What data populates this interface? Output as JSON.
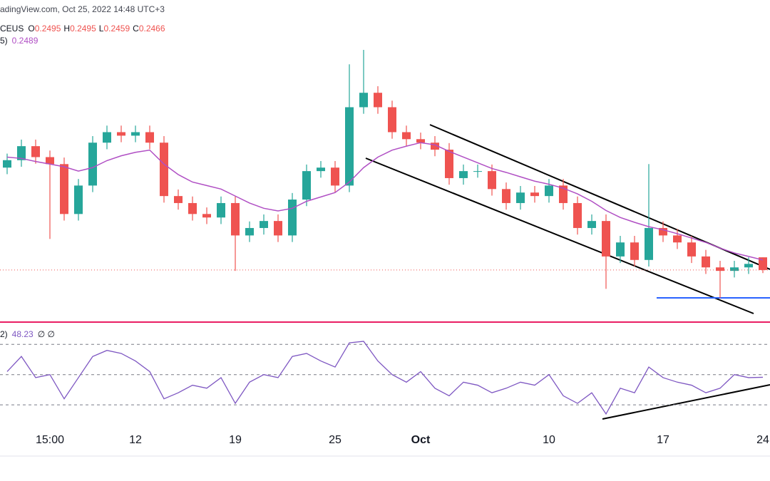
{
  "header": {
    "source": "adingView.com, Oct 25, 2022 14:48 UTC+3",
    "symbol": "CEUS",
    "ohlc_labels": [
      "O",
      "H",
      "L",
      "C"
    ]
  },
  "chart_data": [
    {
      "type": "candlestick",
      "categories": [
        null,
        null,
        null,
        "15:00",
        null,
        null,
        null,
        null,
        null,
        "12",
        null,
        null,
        null,
        null,
        null,
        null,
        "19",
        null,
        null,
        null,
        null,
        null,
        null,
        "25",
        null,
        null,
        null,
        null,
        null,
        "Oct",
        null,
        null,
        null,
        null,
        null,
        null,
        null,
        null,
        "10",
        null,
        null,
        null,
        null,
        null,
        null,
        null,
        "17",
        null,
        null,
        null,
        null,
        null,
        null,
        "24"
      ],
      "open": [
        0.27,
        0.2717,
        0.2749,
        0.2724,
        0.2708,
        0.2594,
        0.2659,
        0.2757,
        0.2781,
        0.2773,
        0.2781,
        0.2757,
        0.2635,
        0.2619,
        0.2594,
        0.2586,
        0.2619,
        0.2545,
        0.2562,
        0.2578,
        0.2545,
        0.2627,
        0.2692,
        0.27,
        0.2659,
        0.2838,
        0.2871,
        0.2838,
        0.2781,
        0.2765,
        0.2757,
        0.2741,
        0.2676,
        0.2692,
        0.2692,
        0.2651,
        0.2619,
        0.2643,
        0.2635,
        0.2659,
        0.2619,
        0.2562,
        0.2578,
        0.2497,
        0.2529,
        0.2489,
        0.2562,
        0.2545,
        0.2529,
        0.2497,
        0.2472,
        0.2464,
        0.2472,
        0.2495
      ],
      "high": [
        0.2732,
        0.2764,
        0.2764,
        0.2739,
        0.2723,
        0.2674,
        0.2772,
        0.2796,
        0.2796,
        0.2796,
        0.2796,
        0.2772,
        0.265,
        0.2634,
        0.2609,
        0.2634,
        0.2634,
        0.2577,
        0.2593,
        0.2593,
        0.2642,
        0.2707,
        0.2715,
        0.2715,
        0.2936,
        0.2969,
        0.2886,
        0.2853,
        0.2796,
        0.278,
        0.2772,
        0.2756,
        0.2707,
        0.2707,
        0.2707,
        0.2666,
        0.2658,
        0.2658,
        0.2674,
        0.2674,
        0.2634,
        0.2593,
        0.2593,
        0.2544,
        0.2544,
        0.2708,
        0.2577,
        0.256,
        0.2544,
        0.2512,
        0.2487,
        0.2487,
        0.2495,
        0.2495
      ],
      "low": [
        0.2685,
        0.2702,
        0.2709,
        0.2537,
        0.2579,
        0.2579,
        0.2644,
        0.2742,
        0.2758,
        0.2758,
        0.2742,
        0.262,
        0.2604,
        0.2579,
        0.2571,
        0.2571,
        0.2464,
        0.253,
        0.2547,
        0.253,
        0.253,
        0.2612,
        0.2677,
        0.2644,
        0.2644,
        0.2823,
        0.2823,
        0.2766,
        0.275,
        0.2742,
        0.2726,
        0.2661,
        0.2661,
        0.2677,
        0.2636,
        0.2604,
        0.2604,
        0.262,
        0.262,
        0.2604,
        0.2547,
        0.2547,
        0.2423,
        0.2482,
        0.2474,
        0.2474,
        0.253,
        0.2514,
        0.2482,
        0.2457,
        0.2402,
        0.2449,
        0.2457,
        0.2459
      ],
      "close": [
        0.2717,
        0.2749,
        0.2724,
        0.2708,
        0.2594,
        0.2659,
        0.2757,
        0.2781,
        0.2773,
        0.2781,
        0.2757,
        0.2635,
        0.2619,
        0.2594,
        0.2586,
        0.2619,
        0.2545,
        0.2562,
        0.2578,
        0.2545,
        0.2627,
        0.2692,
        0.27,
        0.2659,
        0.2838,
        0.2871,
        0.2838,
        0.2781,
        0.2765,
        0.2757,
        0.2741,
        0.2676,
        0.2692,
        0.2692,
        0.2651,
        0.2619,
        0.2643,
        0.2635,
        0.2659,
        0.2619,
        0.2562,
        0.2578,
        0.2497,
        0.2529,
        0.2489,
        0.2562,
        0.2545,
        0.2529,
        0.2497,
        0.2472,
        0.2464,
        0.2472,
        0.248,
        0.2466
      ],
      "up_color": "#26a69a",
      "down_color": "#ef5350",
      "ylim": [
        0.2347,
        0.3083
      ],
      "series": [
        {
          "name": "5)",
          "color": "#b04fc4",
          "values": [
            0.2724,
            0.2721,
            0.2714,
            0.2708,
            0.2702,
            0.2692,
            0.27,
            0.2716,
            0.2727,
            0.2735,
            0.274,
            0.2708,
            0.2684,
            0.2667,
            0.2659,
            0.2651,
            0.2635,
            0.2619,
            0.2607,
            0.2601,
            0.2607,
            0.2623,
            0.2633,
            0.2643,
            0.2667,
            0.27,
            0.2724,
            0.274,
            0.2749,
            0.2757,
            0.2752,
            0.2737,
            0.2724,
            0.2711,
            0.2698,
            0.2689,
            0.2679,
            0.2669,
            0.2662,
            0.2653,
            0.264,
            0.2623,
            0.2602,
            0.2586,
            0.2575,
            0.2565,
            0.2558,
            0.2549,
            0.2539,
            0.2529,
            0.2516,
            0.2505,
            0.2497,
            0.2489
          ]
        }
      ]
    },
    {
      "type": "line",
      "name": "2)",
      "suffix": "∅ ∅",
      "color": "#7e57c2",
      "values": [
        52,
        62,
        48,
        50,
        34,
        48,
        62,
        66,
        64,
        59,
        52,
        34,
        38,
        43,
        41,
        48,
        31,
        45,
        50,
        48,
        62,
        64,
        59,
        55,
        71,
        72,
        59,
        50,
        45,
        52,
        41,
        36,
        45,
        43,
        38,
        41,
        45,
        43,
        50,
        36,
        31,
        38,
        24,
        41,
        38,
        55,
        48,
        45,
        43,
        38,
        41,
        50,
        48,
        48.23
      ],
      "ylim": [
        15,
        80
      ],
      "levels": [
        30,
        50,
        70
      ]
    }
  ]
}
